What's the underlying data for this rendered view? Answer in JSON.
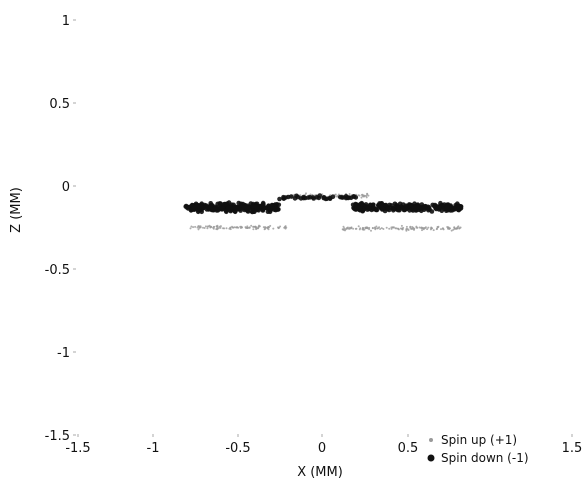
{
  "chart_data": {
    "type": "scatter",
    "title": "",
    "xlabel": "X (MM)",
    "ylabel": "Z (MM)",
    "xlim": [
      -1.5,
      1.5
    ],
    "ylim": [
      -1.5,
      1.0
    ],
    "xticks": [
      "-1.5",
      "-1",
      "-0.5",
      "0",
      "0.5",
      "1.5"
    ],
    "yticks": [
      "1",
      "0.5",
      "0",
      "-0.5",
      "-1",
      "-1.5"
    ],
    "grid": false,
    "legend_placement": "bottom-right",
    "series": [
      {
        "name": "Spin up (+1)",
        "color": "#9a9a9a",
        "marker": "light-dot",
        "clusters": [
          {
            "x_range": [
              -0.78,
              -0.2
            ],
            "z_center": -0.25,
            "z_spread": 0.015,
            "count": 110
          },
          {
            "x_range": [
              0.12,
              0.82
            ],
            "z_center": -0.255,
            "z_spread": 0.018,
            "count": 140
          },
          {
            "x_range": [
              -0.22,
              0.28
            ],
            "z_center": -0.06,
            "z_spread": 0.02,
            "count": 90
          }
        ]
      },
      {
        "name": "Spin down (-1)",
        "color": "#111111",
        "marker": "filled-dot",
        "clusters": [
          {
            "x_range": [
              -0.8,
              -0.25
            ],
            "z_center": -0.13,
            "z_spread": 0.035,
            "count": 260
          },
          {
            "x_range": [
              0.18,
              0.83
            ],
            "z_center": -0.13,
            "z_spread": 0.035,
            "count": 250
          },
          {
            "x_range": [
              -0.25,
              0.2
            ],
            "z_center": -0.07,
            "z_spread": 0.015,
            "count": 40
          }
        ]
      }
    ]
  }
}
